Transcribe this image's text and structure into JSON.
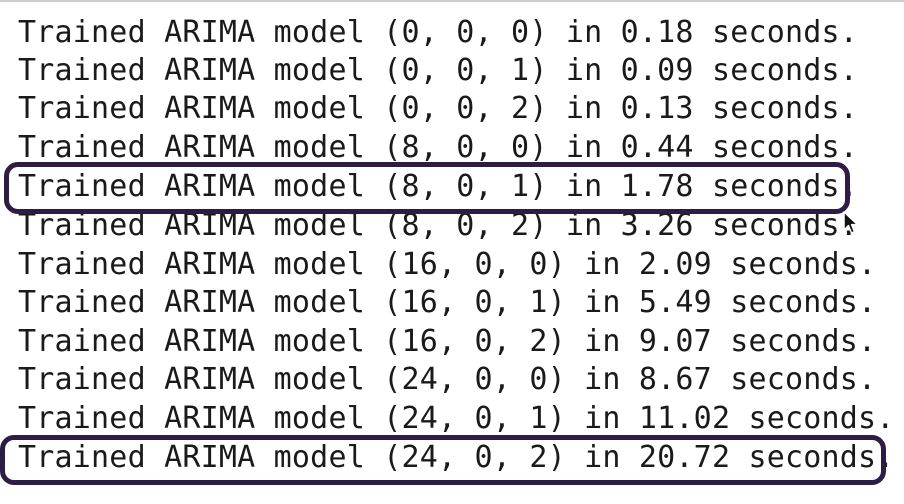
{
  "console": {
    "lines": [
      "Trained ARIMA model (0, 0, 0) in 0.18 seconds.",
      "Trained ARIMA model (0, 0, 1) in 0.09 seconds.",
      "Trained ARIMA model (0, 0, 2) in 0.13 seconds.",
      "Trained ARIMA model (8, 0, 0) in 0.44 seconds.",
      "Trained ARIMA model (8, 0, 1) in 1.78 seconds.",
      "Trained ARIMA model (8, 0, 2) in 3.26 seconds.",
      "Trained ARIMA model (16, 0, 0) in 2.09 seconds.",
      "Trained ARIMA model (16, 0, 1) in 5.49 seconds.",
      "Trained ARIMA model (16, 0, 2) in 9.07 seconds.",
      "Trained ARIMA model (24, 0, 0) in 8.67 seconds.",
      "Trained ARIMA model (24, 0, 1) in 11.02 seconds.",
      "Trained ARIMA model (24, 0, 2) in 20.72 seconds."
    ]
  },
  "highlight_color": "#2e1c45",
  "icons": {
    "cursor": "mouse-pointer-icon"
  }
}
